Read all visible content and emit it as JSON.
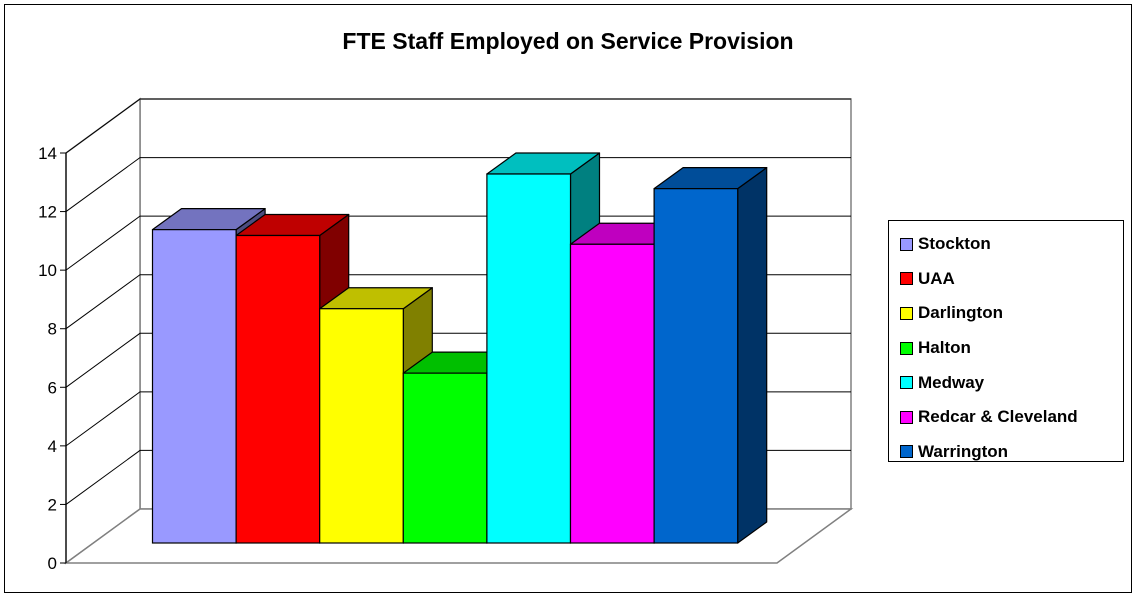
{
  "chart_data": {
    "type": "bar",
    "title": "FTE Staff Employed on Service Provision",
    "xlabel": "",
    "ylabel": "",
    "ylim": [
      0,
      14
    ],
    "yticks": [
      "0",
      "2",
      "4",
      "6",
      "8",
      "10",
      "12",
      "14"
    ],
    "grid": true,
    "legend_position": "right",
    "three_d": true,
    "series": [
      {
        "name": "Stockton",
        "value": 10.7,
        "color": "#9999FF"
      },
      {
        "name": "UAA",
        "value": 10.5,
        "color": "#FF0000"
      },
      {
        "name": "Darlington",
        "value": 8.0,
        "color": "#FFFF00"
      },
      {
        "name": "Halton",
        "value": 5.8,
        "color": "#00FF00"
      },
      {
        "name": "Medway",
        "value": 12.6,
        "color": "#00FFFF"
      },
      {
        "name": "Redcar & Cleveland",
        "value": 10.2,
        "color": "#FF00FF"
      },
      {
        "name": "Warrington",
        "value": 12.1,
        "color": "#0066CC"
      }
    ]
  }
}
